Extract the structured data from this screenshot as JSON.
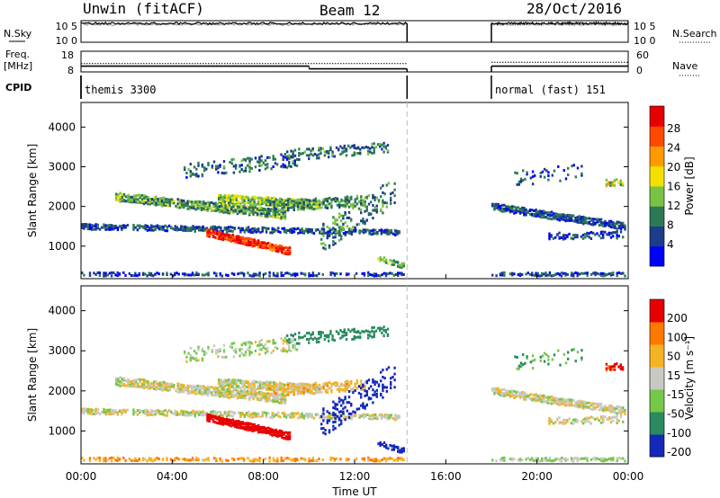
{
  "header": {
    "radar": "Unwin (fitACF)",
    "beam": "Beam 12",
    "date": "28/Oct/2016"
  },
  "panel_labels": {
    "nsky": "N.Sky",
    "nsearch": "N.Search",
    "freq_top": "Freq.",
    "freq_unit": "[MHz]",
    "nave": "Nave",
    "cpid": "CPID"
  },
  "cpid_segments": [
    {
      "text": "themis 3300",
      "t0": 0.0,
      "t1": 14.3
    },
    {
      "text": "normal (fast) 151",
      "t0": 18.0,
      "t1": 24.0
    }
  ],
  "scale_ticks": {
    "noise_left": [
      "10^5",
      "10^0"
    ],
    "noise_right": [
      "10^5",
      "10^0"
    ],
    "freq_left": [
      "18",
      "8"
    ],
    "freq_right": [
      "60",
      "0"
    ]
  },
  "chart_data": [
    {
      "type": "line",
      "title": "N.Sky / N.Search",
      "x_range_hours": [
        0,
        24
      ],
      "data_gaps": [
        [
          14.3,
          18.0
        ]
      ],
      "series": [
        {
          "name": "N.Sky",
          "style": "solid",
          "approx_log_value": 4.6
        },
        {
          "name": "N.Search",
          "style": "dotted",
          "approx_log_value": 4.4
        }
      ],
      "yticks_left": [
        "10^5",
        "10^0"
      ],
      "yticks_right": [
        "10^5",
        "10^0"
      ]
    },
    {
      "type": "line",
      "title": "Freq. [MHz] / Nave",
      "x_range_hours": [
        0,
        24
      ],
      "series": [
        {
          "name": "Freq.",
          "style": "solid",
          "segments": [
            {
              "t0": 0,
              "t1": 10,
              "value": 10.8
            },
            {
              "t0": 10,
              "t1": 14.3,
              "value": 9.5
            },
            {
              "t0": 18,
              "t1": 24,
              "value": 10.8
            }
          ]
        },
        {
          "name": "Nave",
          "style": "dotted",
          "segments": [
            {
              "t0": 0,
              "t1": 14.3,
              "value": 24
            },
            {
              "t0": 18,
              "t1": 24,
              "value": 28
            }
          ]
        }
      ],
      "yticks_left": [
        "18",
        "8"
      ],
      "yticks_right": [
        "60",
        "0"
      ]
    },
    {
      "type": "heatmap",
      "ylabel": "Slant Range [km]",
      "ylim": [
        180,
        4620
      ],
      "yticks": [
        1000,
        2000,
        3000,
        4000
      ],
      "colorbar": {
        "label": "Power [dB]",
        "ticks": [
          "28",
          "24",
          "20",
          "16",
          "12",
          "8",
          "4"
        ],
        "colors": [
          "#0000ff",
          "#1c3c8c",
          "#2c7a55",
          "#7bc143",
          "#f2e000",
          "#ff9a00",
          "#ff4800",
          "#e80000"
        ]
      }
    },
    {
      "type": "heatmap",
      "ylabel": "Slant Range [km]",
      "ylim": [
        180,
        4620
      ],
      "yticks": [
        1000,
        2000,
        3000,
        4000
      ],
      "colorbar": {
        "label": "Velocity [m s⁻¹]",
        "ticks": [
          "200",
          "100",
          "50",
          "15",
          "-15",
          "-50",
          "-100",
          "-200"
        ],
        "colors": [
          "#1429b8",
          "#2a8a60",
          "#74c84a",
          "#c9c9c3",
          "#f5b321",
          "#ff7800",
          "#e80000"
        ]
      }
    }
  ],
  "x_axis": {
    "ticks": [
      "00:00",
      "04:00",
      "08:00",
      "12:00",
      "16:00",
      "20:00",
      "00:00"
    ],
    "tick_hours": [
      0,
      4,
      8,
      12,
      16,
      20,
      24
    ],
    "label": "Time UT"
  }
}
